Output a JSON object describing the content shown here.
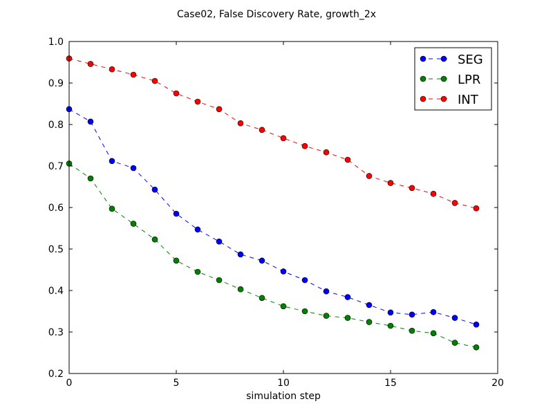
{
  "chart_data": {
    "type": "line",
    "title": "Case02, False Discovery Rate, growth_2x",
    "xlabel": "simulation step",
    "ylabel": "",
    "xlim": [
      0,
      20
    ],
    "ylim": [
      0.2,
      1.0
    ],
    "x_ticks": [
      0,
      5,
      10,
      15,
      20
    ],
    "y_ticks": [
      0.2,
      0.3,
      0.4,
      0.5,
      0.6,
      0.7,
      0.8,
      0.9,
      1.0
    ],
    "x_tick_labels": [
      "0",
      "5",
      "10",
      "15",
      "20"
    ],
    "y_tick_labels": [
      "0.2",
      "0.3",
      "0.4",
      "0.5",
      "0.6",
      "0.7",
      "0.8",
      "0.9",
      "1.0"
    ],
    "grid": false,
    "legend_position": "top-right",
    "x": [
      0,
      1,
      2,
      3,
      4,
      5,
      6,
      7,
      8,
      9,
      10,
      11,
      12,
      13,
      14,
      15,
      16,
      17,
      18,
      19
    ],
    "series": [
      {
        "name": "SEG",
        "color": "#0000ff",
        "values": [
          0.837,
          0.807,
          0.712,
          0.695,
          0.643,
          0.585,
          0.547,
          0.518,
          0.487,
          0.472,
          0.446,
          0.425,
          0.398,
          0.384,
          0.365,
          0.347,
          0.342,
          0.348,
          0.334,
          0.318
        ]
      },
      {
        "name": "LPR",
        "color": "#008000",
        "values": [
          0.706,
          0.67,
          0.597,
          0.561,
          0.523,
          0.472,
          0.445,
          0.425,
          0.403,
          0.382,
          0.362,
          0.35,
          0.339,
          0.334,
          0.324,
          0.315,
          0.303,
          0.297,
          0.274,
          0.263
        ]
      },
      {
        "name": "INT",
        "color": "#ff0000",
        "values": [
          0.959,
          0.946,
          0.933,
          0.92,
          0.905,
          0.875,
          0.855,
          0.837,
          0.803,
          0.787,
          0.767,
          0.748,
          0.733,
          0.715,
          0.676,
          0.659,
          0.647,
          0.633,
          0.611,
          0.598
        ]
      }
    ]
  }
}
